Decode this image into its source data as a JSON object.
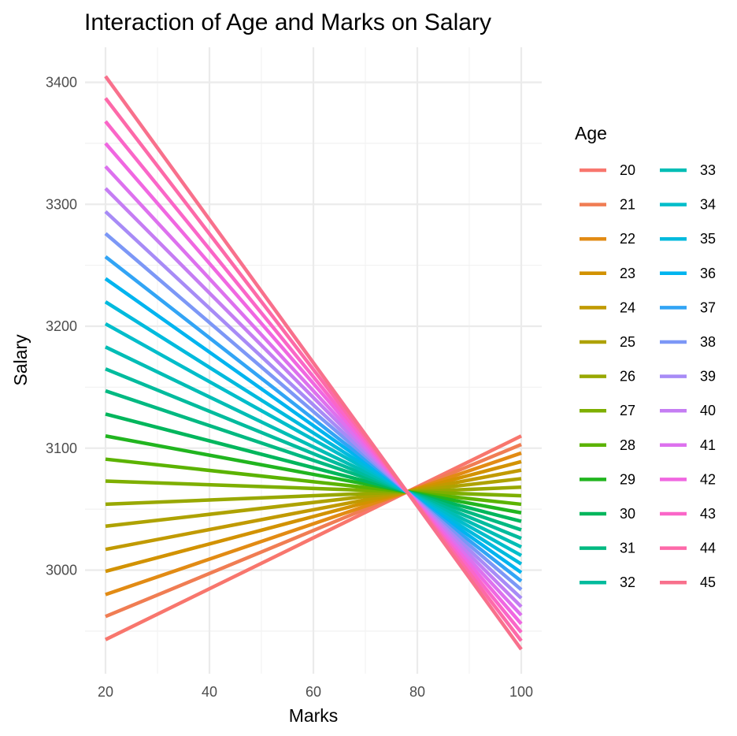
{
  "chart_data": {
    "type": "line",
    "title": "Interaction of Age and Marks on Salary",
    "xlabel": "Marks",
    "ylabel": "Salary",
    "xlim": [
      19,
      101
    ],
    "ylim": [
      2920,
      3430
    ],
    "x_ticks": [
      20,
      40,
      60,
      80,
      100
    ],
    "y_ticks": [
      3000,
      3100,
      3200,
      3300,
      3400
    ],
    "grid": true,
    "legend_title": "Age",
    "legend_position": "right",
    "x": [
      20,
      100
    ],
    "series": [
      {
        "name": "20",
        "color": "#F8766D",
        "values": [
          2943,
          3110
        ]
      },
      {
        "name": "21",
        "color": "#F07D53",
        "values": [
          2962,
          3103
        ]
      },
      {
        "name": "22",
        "color": "#E28B14",
        "values": [
          2980,
          3096
        ]
      },
      {
        "name": "23",
        "color": "#D29200",
        "values": [
          2999,
          3089
        ]
      },
      {
        "name": "24",
        "color": "#C19A00",
        "values": [
          3017,
          3082
        ]
      },
      {
        "name": "25",
        "color": "#AEA200",
        "values": [
          3036,
          3075
        ]
      },
      {
        "name": "26",
        "color": "#98A800",
        "values": [
          3054,
          3068
        ]
      },
      {
        "name": "27",
        "color": "#7EAF00",
        "values": [
          3073,
          3061
        ]
      },
      {
        "name": "28",
        "color": "#5BB300",
        "values": [
          3091,
          3054
        ]
      },
      {
        "name": "29",
        "color": "#21B51F",
        "values": [
          3110,
          3047
        ]
      },
      {
        "name": "30",
        "color": "#00B65C",
        "values": [
          3128,
          3040
        ]
      },
      {
        "name": "31",
        "color": "#00B981",
        "values": [
          3147,
          3033
        ]
      },
      {
        "name": "32",
        "color": "#00BB9D",
        "values": [
          3165,
          3026
        ]
      },
      {
        "name": "33",
        "color": "#00BDB5",
        "values": [
          3183,
          3019
        ]
      },
      {
        "name": "34",
        "color": "#00BDCA",
        "values": [
          3202,
          3012
        ]
      },
      {
        "name": "35",
        "color": "#00BADD",
        "values": [
          3220,
          3005
        ]
      },
      {
        "name": "36",
        "color": "#00B4EF",
        "values": [
          3239,
          2998
        ]
      },
      {
        "name": "37",
        "color": "#32A4F5",
        "values": [
          3257,
          2991
        ]
      },
      {
        "name": "38",
        "color": "#7C97F6",
        "values": [
          3276,
          2984
        ]
      },
      {
        "name": "39",
        "color": "#A78BF6",
        "values": [
          3294,
          2977
        ]
      },
      {
        "name": "40",
        "color": "#C57DF3",
        "values": [
          3313,
          2970
        ]
      },
      {
        "name": "41",
        "color": "#DD71EE",
        "values": [
          3331,
          2963
        ]
      },
      {
        "name": "42",
        "color": "#F067E1",
        "values": [
          3350,
          2956
        ]
      },
      {
        "name": "43",
        "color": "#FA66C8",
        "values": [
          3368,
          2949
        ]
      },
      {
        "name": "44",
        "color": "#FD69A9",
        "values": [
          3387,
          2942
        ]
      },
      {
        "name": "45",
        "color": "#F8708C",
        "values": [
          3405,
          2935
        ]
      }
    ]
  }
}
